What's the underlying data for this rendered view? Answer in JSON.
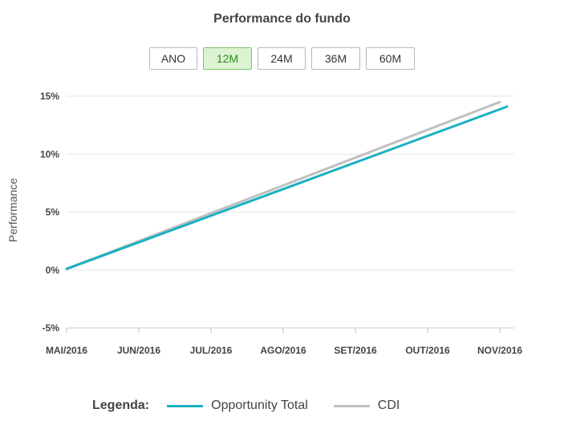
{
  "title": "Performance do fundo",
  "periods": [
    {
      "label": "ANO",
      "active": false
    },
    {
      "label": "12M",
      "active": true
    },
    {
      "label": "24M",
      "active": false
    },
    {
      "label": "36M",
      "active": false
    },
    {
      "label": "60M",
      "active": false
    }
  ],
  "legend": {
    "title": "Legenda:",
    "items": [
      {
        "name": "Opportunity Total",
        "color": "#1ab0c3"
      },
      {
        "name": "CDI",
        "color": "#c0c0c0"
      }
    ]
  },
  "chart_data": {
    "type": "line",
    "ylabel": "Performance",
    "xlabel": "",
    "categories": [
      "MAI/2016",
      "JUN/2016",
      "JUL/2016",
      "AGO/2016",
      "SET/2016",
      "OUT/2016",
      "NOV/2016"
    ],
    "y_ticks": [
      "15%",
      "10%",
      "5%",
      "0%",
      "-5%"
    ],
    "y_tick_values": [
      15,
      10,
      5,
      0,
      -5
    ],
    "ylim": [
      -5,
      15
    ],
    "grid": true,
    "legend_position": "bottom",
    "series": [
      {
        "name": "Opportunity Total",
        "color": "#1ab0c3",
        "x": [
          0,
          6.1
        ],
        "values": [
          0.1,
          14.1
        ]
      },
      {
        "name": "CDI",
        "color": "#c0c0c0",
        "x": [
          0,
          6.0
        ],
        "values": [
          0.1,
          14.5
        ]
      }
    ]
  }
}
